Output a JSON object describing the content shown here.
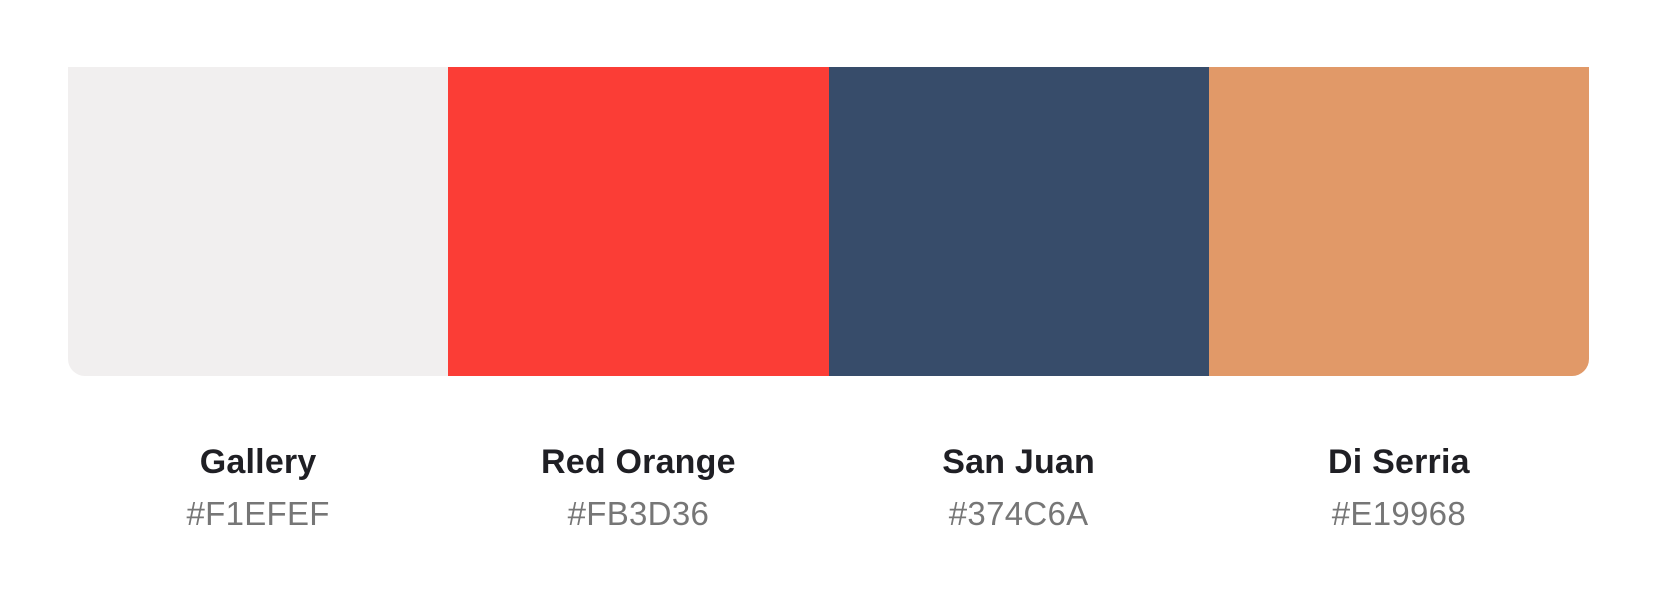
{
  "palette": {
    "colors": [
      {
        "name": "Gallery",
        "hex": "#F1EFEF",
        "color": "#F1EFEF"
      },
      {
        "name": "Red Orange",
        "hex": "#FB3D36",
        "color": "#FB3D36"
      },
      {
        "name": "San Juan",
        "hex": "#374C6A",
        "color": "#374C6A"
      },
      {
        "name": "Di Serria",
        "hex": "#E19968",
        "color": "#E19968"
      }
    ]
  }
}
